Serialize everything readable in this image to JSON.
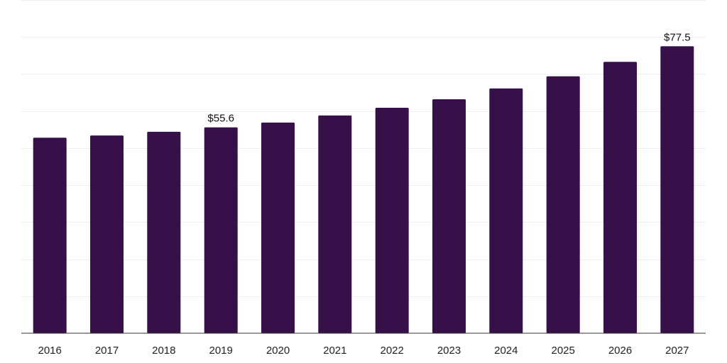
{
  "chart_data": {
    "type": "bar",
    "title": "",
    "xlabel": "",
    "ylabel": "",
    "categories": [
      "2016",
      "2017",
      "2018",
      "2019",
      "2020",
      "2021",
      "2022",
      "2023",
      "2024",
      "2025",
      "2026",
      "2027"
    ],
    "values": [
      52.8,
      53.4,
      54.4,
      55.6,
      56.9,
      58.8,
      60.9,
      63.2,
      66.1,
      69.4,
      73.3,
      77.5
    ],
    "data_labels": [
      {
        "category": "2019",
        "text": "$55.6"
      },
      {
        "category": "2027",
        "text": "$77.5"
      }
    ],
    "ylim": [
      0,
      90
    ],
    "grid": true,
    "y_tick_labels_visible": false,
    "legend": "none",
    "colors": {
      "bar": "#37104a",
      "grid": "#eeeeee",
      "axis": "#333333",
      "text": "#222222"
    }
  }
}
